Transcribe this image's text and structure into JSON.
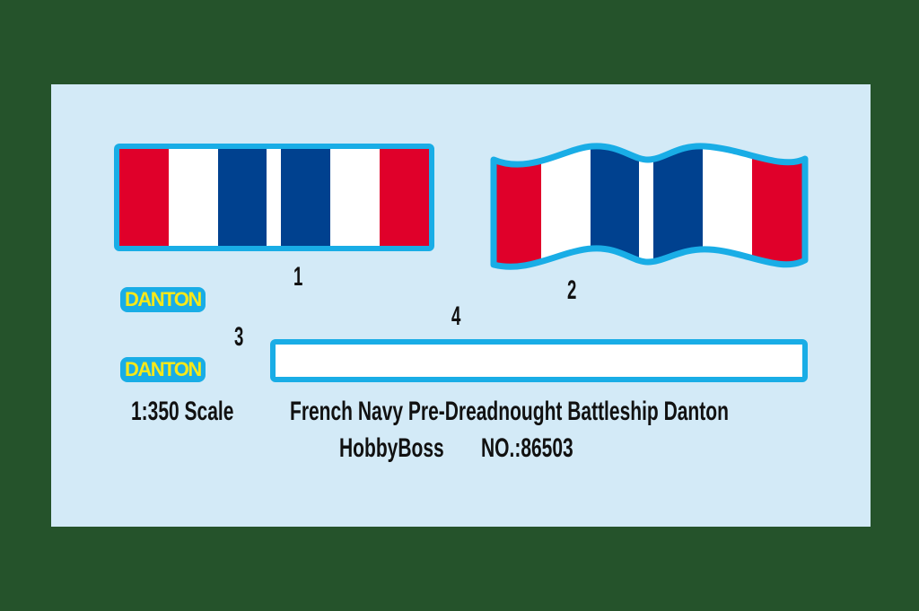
{
  "colors": {
    "background": "#25532b",
    "sheet": "#d3eaf7",
    "outline": "#19ade6",
    "red": "#e0002a",
    "white": "#ffffff",
    "blue": "#00418f",
    "name_text": "#f6e81a"
  },
  "decals": {
    "flag1": {
      "number": "1",
      "stripes": [
        "red",
        "white",
        "blue",
        "white",
        "blue",
        "white",
        "red"
      ]
    },
    "flag2": {
      "number": "2",
      "stripes": [
        "red",
        "white",
        "blue",
        "white",
        "blue",
        "white",
        "red"
      ],
      "shape": "waving"
    },
    "name3": {
      "number": "3",
      "labels": [
        "DANTON",
        "DANTON"
      ]
    },
    "bar4": {
      "number": "4",
      "color": "white"
    }
  },
  "caption": {
    "scale": "1:350  Scale",
    "title": "French Navy Pre-Dreadnought Battleship Danton",
    "brand": "HobbyBoss",
    "model_no": "NO.:86503"
  }
}
